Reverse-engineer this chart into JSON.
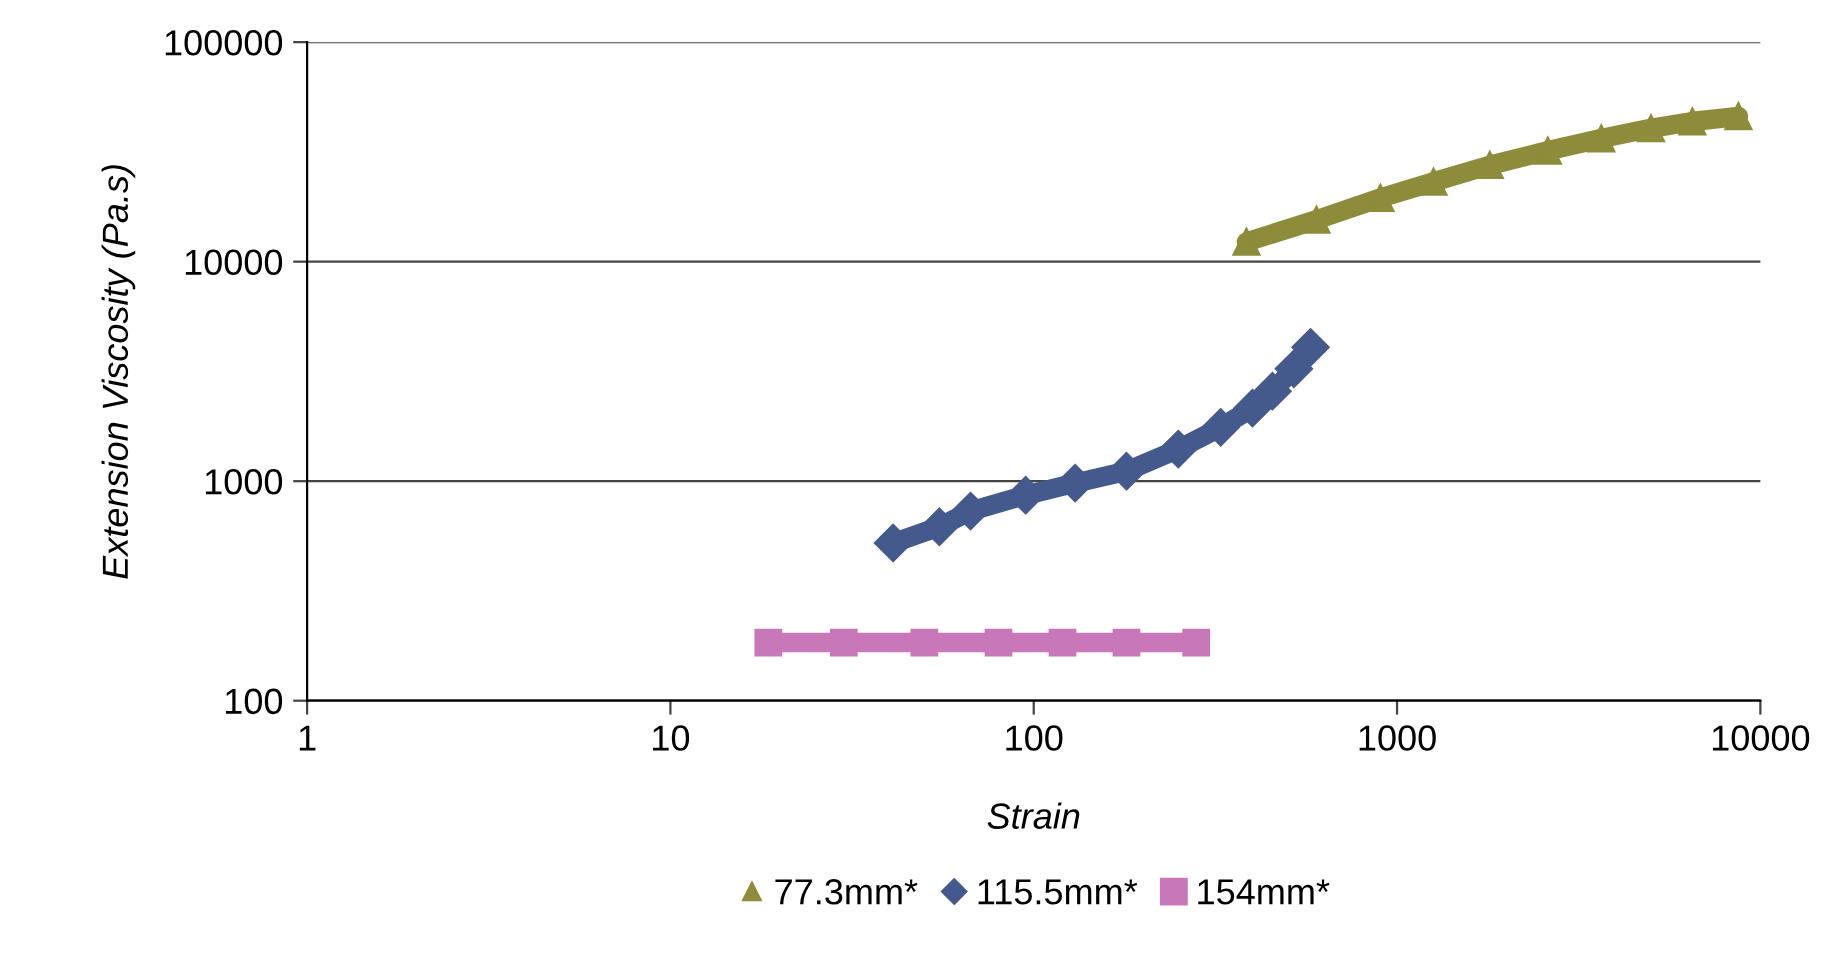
{
  "chart_data": {
    "type": "line",
    "xlabel": "Strain",
    "ylabel": "Extension Viscosity (Pa.s)",
    "log": "xy",
    "xlim": [
      1,
      10000
    ],
    "ylim": [
      100,
      100000
    ],
    "xticks": [
      1,
      10,
      100,
      1000,
      10000
    ],
    "yticks": [
      100,
      1000,
      10000,
      100000
    ],
    "grid": "y",
    "legend": "bottom",
    "series": [
      {
        "name": "77.3mm*",
        "color": "#8c8c3a",
        "marker": "triangle",
        "x": [
          385,
          600,
          900,
          1260,
          1800,
          2600,
          3650,
          5000,
          6500,
          8700
        ],
        "values": [
          12300,
          15500,
          19500,
          23100,
          27500,
          32000,
          36400,
          40500,
          43500,
          45900
        ]
      },
      {
        "name": "115.5mm*",
        "color": "#44598c",
        "marker": "diamond",
        "x": [
          41,
          55,
          67,
          95,
          130,
          180,
          250,
          327,
          400,
          454,
          520,
          578
        ],
        "values": [
          523,
          620,
          731,
          863,
          980,
          1110,
          1400,
          1760,
          2150,
          2570,
          3250,
          4070
        ]
      },
      {
        "name": "154mm*",
        "color": "#c878b8",
        "marker": "square",
        "x": [
          18.6,
          30,
          50,
          80,
          120,
          180,
          280
        ],
        "values": [
          184,
          184,
          184,
          184,
          184,
          184,
          184
        ]
      }
    ]
  }
}
